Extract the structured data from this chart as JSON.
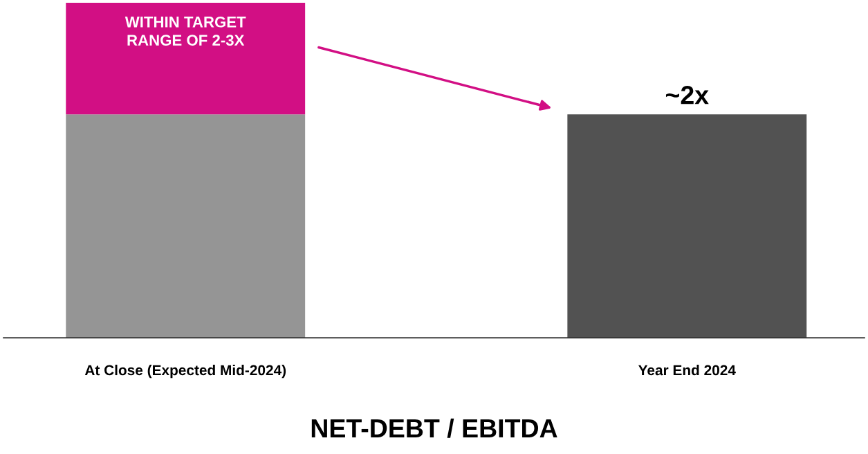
{
  "chart_data": {
    "type": "bar",
    "stacked": true,
    "ylim": [
      0,
      3
    ],
    "xlabel": "NET-DEBT / EBITDA",
    "categories": [
      "At Close (Expected Mid-2024)",
      "Year End 2024"
    ],
    "series": [
      {
        "colors": [
          "#959595",
          "#525252"
        ],
        "values": [
          2,
          2
        ],
        "value_labels": [
          null,
          "~2x"
        ]
      },
      {
        "color": "#d20f84",
        "values": [
          1,
          null
        ],
        "value_labels": [
          "WITHIN TARGET\nRANGE OF 2-3X",
          null
        ]
      }
    ],
    "grid": false,
    "legend": false
  }
}
